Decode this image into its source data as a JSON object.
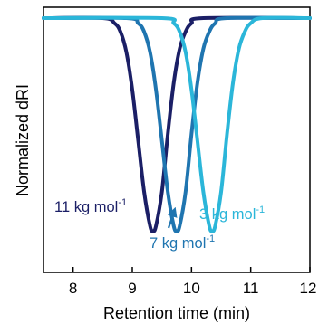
{
  "chart_data": {
    "type": "line",
    "xlabel": "Retention time (min)",
    "ylabel": "Normalized dRI",
    "xlim": [
      7.5,
      12
    ],
    "ylim": [
      -1.45,
      0.1
    ],
    "xticks": [
      8,
      9,
      10,
      11,
      12
    ],
    "xtick_labels": [
      "8",
      "9",
      "10",
      "11",
      "12"
    ],
    "y_tick_labels": false,
    "grid": false,
    "legend": "none",
    "series": [
      {
        "label": "11 kg mol-1",
        "color": "#1b1f66",
        "x": [
          7.5,
          8.5,
          8.7,
          8.8,
          8.9,
          9.0,
          9.1,
          9.2,
          9.3,
          9.35,
          9.4,
          9.5,
          9.6,
          9.7,
          9.8,
          9.9,
          10.0,
          10.2,
          12.0
        ],
        "y": [
          0.0,
          0.0,
          -0.03,
          -0.08,
          -0.2,
          -0.42,
          -0.72,
          -1.02,
          -1.22,
          -1.25,
          -1.22,
          -1.02,
          -0.68,
          -0.38,
          -0.18,
          -0.08,
          -0.03,
          0.0,
          0.0
        ]
      },
      {
        "label": "7 kg mol-1",
        "color": "#1f75b0",
        "x": [
          7.5,
          8.9,
          9.1,
          9.2,
          9.3,
          9.4,
          9.5,
          9.6,
          9.7,
          9.75,
          9.8,
          9.9,
          10.0,
          10.1,
          10.2,
          10.3,
          10.4,
          10.6,
          12.0
        ],
        "y": [
          0.0,
          0.0,
          -0.03,
          -0.08,
          -0.2,
          -0.42,
          -0.72,
          -1.02,
          -1.22,
          -1.25,
          -1.22,
          -1.02,
          -0.68,
          -0.38,
          -0.18,
          -0.08,
          -0.03,
          0.0,
          0.0
        ]
      },
      {
        "label": "3 kg mol-1",
        "color": "#2bb6d9",
        "x": [
          7.5,
          9.5,
          9.7,
          9.8,
          9.9,
          10.0,
          10.1,
          10.2,
          10.3,
          10.35,
          10.4,
          10.5,
          10.6,
          10.7,
          10.8,
          10.9,
          11.0,
          11.2,
          12.0
        ],
        "y": [
          0.0,
          0.0,
          -0.03,
          -0.08,
          -0.2,
          -0.42,
          -0.72,
          -1.02,
          -1.22,
          -1.25,
          -1.22,
          -1.02,
          -0.68,
          -0.38,
          -0.18,
          -0.08,
          -0.03,
          0.0,
          0.0
        ]
      }
    ],
    "annotations": [
      {
        "text": "11 kg mol",
        "sup": "-1",
        "color": "#1b1f66"
      },
      {
        "text": "7 kg mol",
        "sup": "-1",
        "color": "#1f75b0",
        "arrow_to": [
          9.72,
          -1.12
        ]
      },
      {
        "text": "3 kg mol",
        "sup": "-1",
        "color": "#2bb6d9"
      }
    ]
  }
}
